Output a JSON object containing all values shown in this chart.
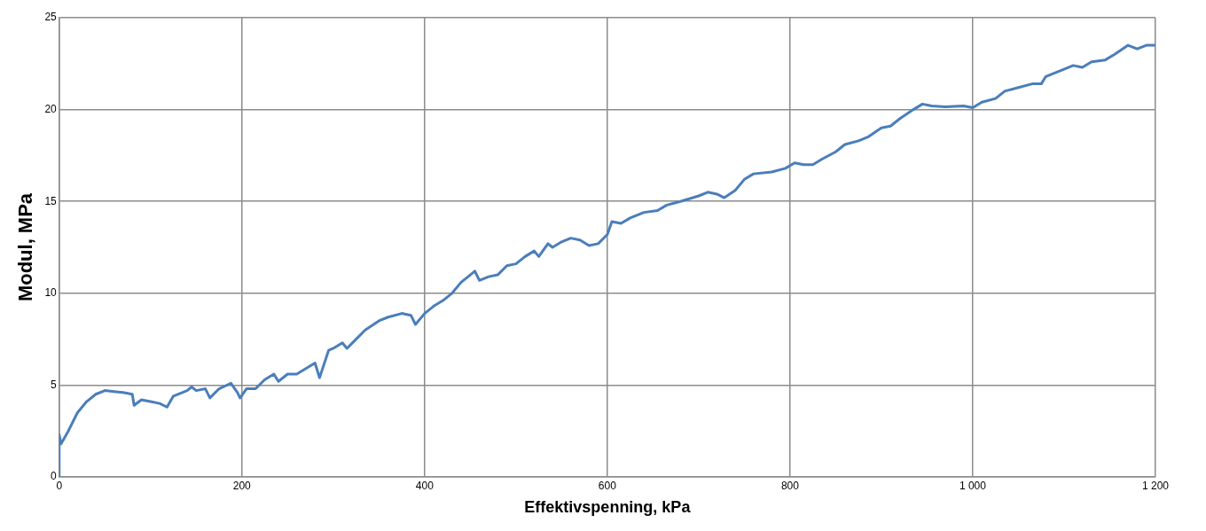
{
  "chart_data": {
    "type": "line",
    "xlabel": "Effektivspenning, kPa",
    "ylabel": "Modul, MPa",
    "xlim": [
      0,
      1200
    ],
    "xticks": [
      0,
      200,
      400,
      600,
      800,
      {
        "value": 1000,
        "label": "1 000"
      },
      {
        "value": 1200,
        "label": "1 200"
      }
    ],
    "ylim": [
      0,
      25
    ],
    "yticks": [
      0,
      5,
      10,
      15,
      20,
      25
    ],
    "grid": true,
    "legend": false,
    "marker": "none",
    "line_style": "solid",
    "series": [
      {
        "color": "#4a7ebb",
        "x": [
          0,
          0,
          2,
          10,
          20,
          30,
          40,
          50,
          60,
          70,
          80,
          82,
          90,
          100,
          110,
          118,
          125,
          140,
          145,
          150,
          160,
          165,
          175,
          188,
          195,
          198,
          205,
          215,
          225,
          235,
          240,
          250,
          260,
          270,
          280,
          285,
          295,
          300,
          310,
          315,
          325,
          335,
          350,
          360,
          375,
          385,
          390,
          400,
          410,
          420,
          430,
          440,
          450,
          455,
          460,
          470,
          480,
          490,
          500,
          510,
          520,
          525,
          535,
          540,
          550,
          560,
          570,
          580,
          590,
          600,
          605,
          615,
          625,
          640,
          655,
          665,
          680,
          700,
          710,
          720,
          728,
          740,
          750,
          760,
          780,
          795,
          805,
          815,
          825,
          835,
          850,
          860,
          875,
          885,
          900,
          910,
          920,
          935,
          945,
          955,
          970,
          990,
          1000,
          1010,
          1025,
          1035,
          1050,
          1065,
          1075,
          1080,
          1095,
          1110,
          1120,
          1130,
          1145,
          1155,
          1170,
          1180,
          1190,
          1200
        ],
        "values": [
          0,
          2.3,
          1.8,
          2.5,
          3.5,
          4.1,
          4.5,
          4.7,
          4.65,
          4.6,
          4.5,
          3.9,
          4.2,
          4.1,
          4.0,
          3.8,
          4.4,
          4.7,
          4.9,
          4.7,
          4.8,
          4.3,
          4.8,
          5.1,
          4.6,
          4.3,
          4.8,
          4.8,
          5.3,
          5.6,
          5.2,
          5.6,
          5.6,
          5.9,
          6.2,
          5.4,
          6.9,
          7.0,
          7.3,
          7.0,
          7.5,
          8.0,
          8.5,
          8.7,
          8.9,
          8.8,
          8.3,
          8.9,
          9.3,
          9.6,
          10.0,
          10.6,
          11.0,
          11.2,
          10.7,
          10.9,
          11.0,
          11.5,
          11.6,
          12.0,
          12.3,
          12.0,
          12.7,
          12.5,
          12.8,
          13.0,
          12.9,
          12.6,
          12.7,
          13.2,
          13.9,
          13.8,
          14.1,
          14.4,
          14.5,
          14.8,
          15.0,
          15.3,
          15.5,
          15.4,
          15.2,
          15.6,
          16.2,
          16.5,
          16.6,
          16.8,
          17.1,
          17.0,
          17.0,
          17.3,
          17.7,
          18.1,
          18.3,
          18.5,
          19.0,
          19.1,
          19.5,
          20.0,
          20.3,
          20.2,
          20.15,
          20.2,
          20.1,
          20.4,
          20.6,
          21.0,
          21.2,
          21.4,
          21.4,
          21.8,
          22.1,
          22.4,
          22.3,
          22.6,
          22.7,
          23.0,
          23.5,
          23.3,
          23.5,
          23.5
        ]
      }
    ]
  }
}
